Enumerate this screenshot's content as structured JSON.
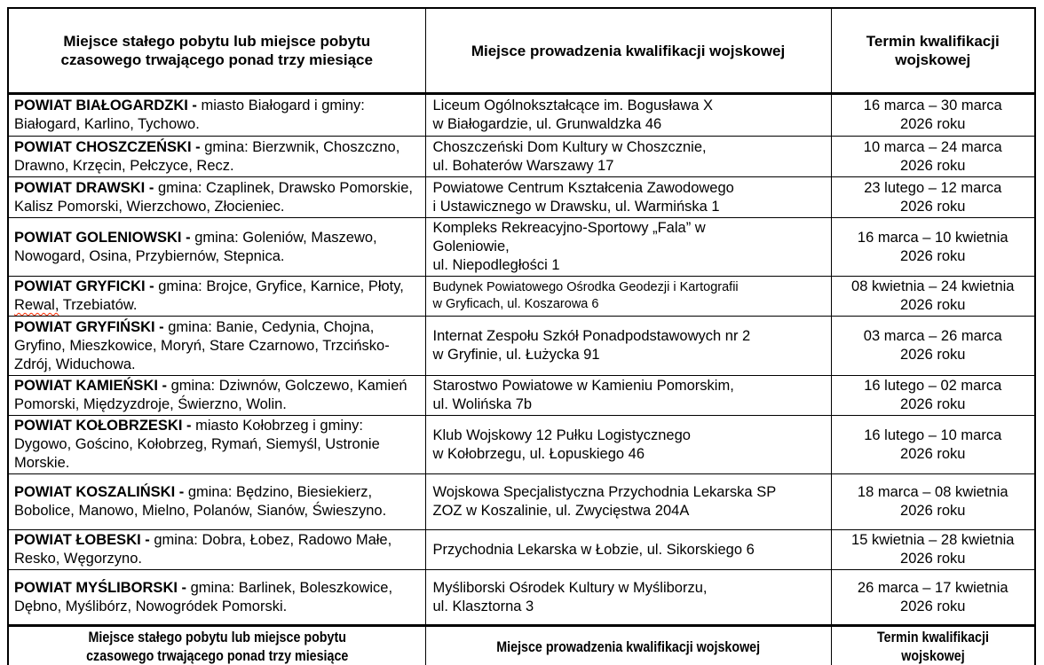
{
  "page": {
    "background_color": "#ffffff",
    "border_color": "#000000",
    "spellcheck_underline_color": "#ff2a00"
  },
  "table": {
    "header": {
      "residence": "Miejsce stałego pobytu lub miejsce pobytu\nczasowego trwającego ponad trzy miesiące",
      "venue": "Miejsce prowadzenia kwalifikacji wojskowej",
      "term": "Termin kwalifikacji\nwojskowej"
    },
    "footer": {
      "residence": "Miejsce stałego pobytu lub miejsce pobytu\nczasowego trwającego ponad trzy miesiące",
      "venue": "Miejsce prowadzenia kwalifikacji wojskowej",
      "term": "Termin kwalifikacji\nwojskowej"
    },
    "rows": [
      {
        "powiat": "POWIAT BIAŁOGARDZKI -",
        "area_parts": [
          {
            "text": " miasto Białogard i gminy: Białogard, Karlino, Tychowo."
          }
        ],
        "venue": "Liceum Ogólnokształcące im. Bogusława X\nw Białogardzie, ul. Grunwaldzka 46",
        "term": "16 marca – 30 marca\n2026 roku"
      },
      {
        "powiat": "POWIAT CHOSZCZEŃSKI -",
        "area_parts": [
          {
            "text": " gmina: Bierzwnik, Choszczno, Drawno, Krzęcin, Pełczyce, Recz."
          }
        ],
        "venue": "Choszczeński Dom Kultury w Choszcznie,\nul. Bohaterów Warszawy 17",
        "term": "10 marca – 24 marca\n2026 roku"
      },
      {
        "powiat": "POWIAT DRAWSKI -",
        "area_parts": [
          {
            "text": " gmina: Czaplinek, Drawsko Pomorskie, Kalisz Pomorski, Wierzchowo, Złocieniec."
          }
        ],
        "venue": "Powiatowe Centrum Kształcenia Zawodowego\ni Ustawicznego w Drawsku, ul. Warmińska 1",
        "term": "23 lutego – 12 marca\n2026 roku"
      },
      {
        "powiat": "POWIAT GOLENIOWSKI -",
        "area_parts": [
          {
            "text": " gmina: Goleniów, Maszewo, Nowogard, Osina, Przybiernów, Stepnica."
          }
        ],
        "venue": "Kompleks Rekreacyjno-Sportowy „Fala” w\nGoleniowie,\nul. Niepodległości 1",
        "term": "16 marca – 10 kwietnia\n2026 roku"
      },
      {
        "powiat": "POWIAT GRYFICKI -",
        "area_parts": [
          {
            "text": " gmina: Brojce, Gryfice, Karnice, Płoty, "
          },
          {
            "text": "Rewal,",
            "wavy": true
          },
          {
            "text": " Trzebiatów."
          }
        ],
        "venue": "Budynek Powiatowego Ośrodka Geodezji i Kartografii\nw Gryficach, ul. Koszarowa 6",
        "venue_small": true,
        "term": "08 kwietnia – 24 kwietnia\n2026 roku"
      },
      {
        "powiat": "POWIAT GRYFIŃSKI -",
        "area_parts": [
          {
            "text": " gmina: Banie, Cedynia, Chojna, Gryfino, Mieszkowice, Moryń, Stare Czarnowo, Trzcińsko-Zdrój, Widuchowa."
          }
        ],
        "venue": "Internat Zespołu Szkół Ponadpodstawowych nr 2\nw Gryfinie, ul. Łużycka 91",
        "term": "03 marca – 26 marca\n2026 roku"
      },
      {
        "powiat": "POWIAT KAMIEŃSKI -",
        "area_parts": [
          {
            "text": " gmina: Dziwnów, Golczewo, Kamień Pomorski, Międzyzdroje, Świerzno, Wolin."
          }
        ],
        "venue": "Starostwo Powiatowe w Kamieniu Pomorskim,\nul. Wolińska 7b",
        "term": "16 lutego – 02 marca\n2026 roku"
      },
      {
        "powiat": "POWIAT KOŁOBRZESKI -",
        "area_parts": [
          {
            "text": " miasto Kołobrzeg i gminy: Dygowo, Gościno, Kołobrzeg, Rymań, Siemyśl, Ustronie Morskie."
          }
        ],
        "venue": "Klub Wojskowy 12 Pułku Logistycznego\nw Kołobrzegu, ul. Łopuskiego 46",
        "term": "16 lutego – 10 marca\n2026 roku"
      },
      {
        "powiat": "POWIAT KOSZALIŃSKI -",
        "area_parts": [
          {
            "text": " gmina: Będzino, Biesiekierz, Bobolice, Manowo, Mielno, Polanów, Sianów, Świeszyno."
          }
        ],
        "venue": "Wojskowa Specjalistyczna Przychodnia Lekarska SP\nZOZ w Koszalinie, ul. Zwycięstwa 204A",
        "term": "18 marca – 08 kwietnia\n2026 roku"
      },
      {
        "powiat": "POWIAT ŁOBESKI -",
        "area_parts": [
          {
            "text": " gmina: Dobra, Łobez, Radowo Małe, Resko, Węgorzyno."
          }
        ],
        "venue": "Przychodnia Lekarska w Łobzie, ul. Sikorskiego 6",
        "term": "15 kwietnia – 28 kwietnia\n2026 roku"
      },
      {
        "powiat": "POWIAT MYŚLIBORSKI -",
        "area_parts": [
          {
            "text": " gmina: Barlinek, Boleszkowice, Dębno, Myślibórz, Nowogródek Pomorski."
          }
        ],
        "venue": "Myśliborski Ośrodek Kultury w Myśliborzu,\nul. Klasztorna 3",
        "term": "26 marca – 17 kwietnia\n2026 roku"
      }
    ]
  }
}
